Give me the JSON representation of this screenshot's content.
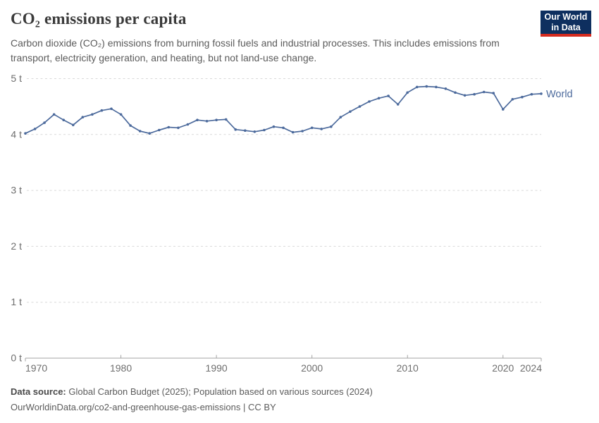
{
  "header": {
    "title": "CO₂ emissions per capita",
    "subtitle": "Carbon dioxide (CO₂) emissions from burning fossil fuels and industrial processes. This includes emissions from transport, electricity generation, and heating, but not land-use change.",
    "logo_line1": "Our World",
    "logo_line2": "in Data"
  },
  "chart_data": {
    "type": "line",
    "title": "CO₂ emissions per capita",
    "xlabel": "",
    "ylabel": "",
    "xlim": [
      1970,
      2024
    ],
    "ylim": [
      0,
      5
    ],
    "grid": "horizontal-dashed",
    "legend_position": "end-of-line-label",
    "x_ticks": [
      1970,
      1980,
      1990,
      2000,
      2010,
      2020,
      2024
    ],
    "y_ticks": [
      {
        "value": 0,
        "label": "0 t"
      },
      {
        "value": 1,
        "label": "1 t"
      },
      {
        "value": 2,
        "label": "2 t"
      },
      {
        "value": 3,
        "label": "3 t"
      },
      {
        "value": 4,
        "label": "4 t"
      },
      {
        "value": 5,
        "label": "5 t"
      }
    ],
    "series": [
      {
        "name": "World",
        "color": "#4c6a9c",
        "x": [
          1970,
          1971,
          1972,
          1973,
          1974,
          1975,
          1976,
          1977,
          1978,
          1979,
          1980,
          1981,
          1982,
          1983,
          1984,
          1985,
          1986,
          1987,
          1988,
          1989,
          1990,
          1991,
          1992,
          1993,
          1994,
          1995,
          1996,
          1997,
          1998,
          1999,
          2000,
          2001,
          2002,
          2003,
          2004,
          2005,
          2006,
          2007,
          2008,
          2009,
          2010,
          2011,
          2012,
          2013,
          2014,
          2015,
          2016,
          2017,
          2018,
          2019,
          2020,
          2021,
          2022,
          2023,
          2024
        ],
        "values": [
          4.02,
          4.1,
          4.21,
          4.36,
          4.26,
          4.17,
          4.31,
          4.36,
          4.43,
          4.46,
          4.36,
          4.16,
          4.06,
          4.02,
          4.08,
          4.13,
          4.12,
          4.18,
          4.26,
          4.24,
          4.26,
          4.27,
          4.09,
          4.07,
          4.05,
          4.08,
          4.14,
          4.12,
          4.04,
          4.06,
          4.12,
          4.1,
          4.14,
          4.31,
          4.41,
          4.5,
          4.59,
          4.65,
          4.69,
          4.54,
          4.75,
          4.85,
          4.86,
          4.85,
          4.82,
          4.75,
          4.7,
          4.72,
          4.76,
          4.74,
          4.45,
          4.63,
          4.67,
          4.72,
          4.73
        ]
      }
    ]
  },
  "footer": {
    "datasource_label": "Data source:",
    "datasource_text": "Global Carbon Budget (2025); Population based on various sources (2024)",
    "license_line": "OurWorldinData.org/co2-and-greenhouse-gas-emissions | CC BY"
  },
  "colors": {
    "accent_line": "#4c6a9c",
    "logo_bg": "#0e2f5f",
    "logo_red": "#d42b1f",
    "grid": "#d9d9d9",
    "axis": "#a3a3a3",
    "tick_label": "#6e6e6e",
    "title": "#3a3a3a",
    "subtitle": "#5b5b5b"
  }
}
